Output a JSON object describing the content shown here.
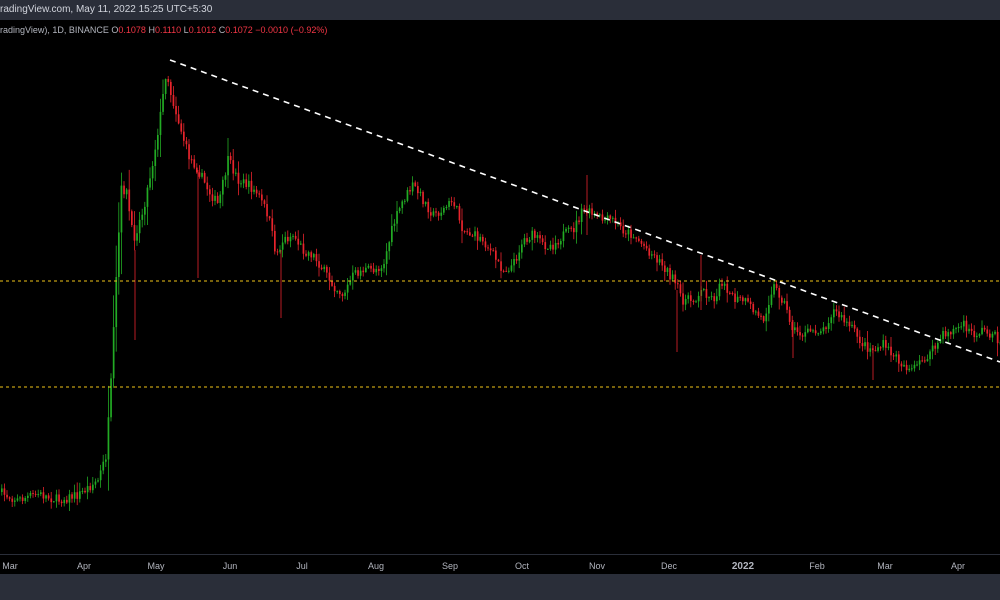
{
  "header": {
    "text": "radingView.com, May 11, 2022 15:25 UTC+5:30"
  },
  "legend": {
    "symbol": "radingView), 1D, BINANCE",
    "open_label": "O",
    "open": "0.1078",
    "high_label": "H",
    "high": "0.1110",
    "low_label": "L",
    "low": "0.1012",
    "close_label": "C",
    "close": "0.1072",
    "change": "−0.0010 (−0.92%)"
  },
  "colors": {
    "background": "#000000",
    "up": "#22ab24",
    "down": "#e8242c",
    "trendline": "#ffffff",
    "support": "#f0c419",
    "panel": "#2a2e39"
  },
  "chart_data": {
    "type": "candlestick",
    "timeframe": "1D",
    "exchange": "BINANCE",
    "x_tick_labels": [
      "Mar",
      "Apr",
      "May",
      "Jun",
      "Jul",
      "Aug",
      "Sep",
      "Oct",
      "Nov",
      "Dec",
      "2022",
      "Feb",
      "Mar",
      "Apr"
    ],
    "last_bar": {
      "open": 0.1078,
      "high": 0.111,
      "low": 0.1012,
      "close": 0.1072
    },
    "grid": false,
    "legend_position": "top-left",
    "annotations": [
      {
        "kind": "descending-trendline",
        "style": "dashed",
        "color": "white"
      },
      {
        "kind": "horizontal-line",
        "style": "dashed",
        "color": "yellow"
      },
      {
        "kind": "horizontal-line",
        "style": "dashed",
        "color": "yellow"
      }
    ]
  }
}
